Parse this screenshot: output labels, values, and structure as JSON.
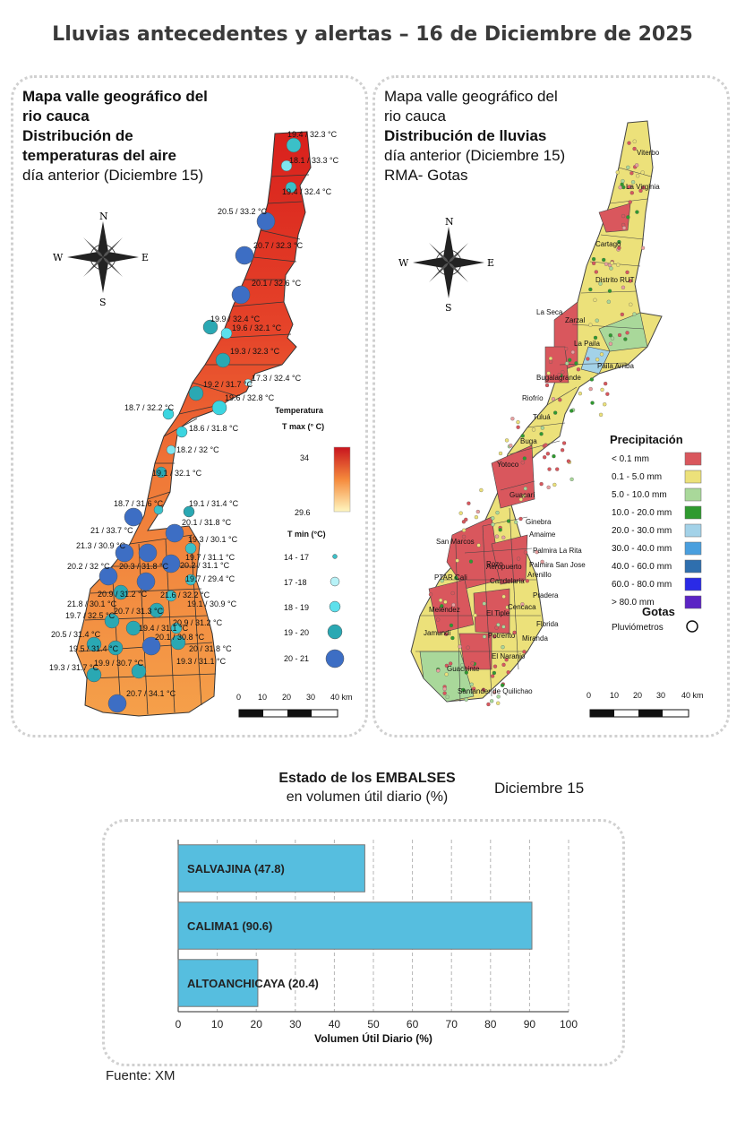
{
  "title": "Lluvias antecedentes y alertas – 16 de Diciembre de 2025",
  "left_map": {
    "line1": "Mapa valle geográfico del",
    "line2": "rio cauca",
    "line3": "Distribución de",
    "line4": "temperaturas del aire",
    "line5": "día anterior (Diciembre 15)",
    "compass": {
      "n": "N",
      "s": "S",
      "e": "E",
      "w": "W"
    },
    "tmax_title_1": "Temperatura",
    "tmax_title_2": "T max (° C)",
    "tmax_high": "34",
    "tmax_low": "29.6",
    "tmin_title": "T min (°C)",
    "tmin_classes": [
      "14 - 17",
      "17 -18",
      "18 - 19",
      "19 - 20",
      "20 - 21"
    ],
    "scale_labels": [
      "0",
      "10",
      "20",
      "30",
      "40 km"
    ],
    "station_labels": [
      "19.4 / 32.3 °C",
      "18.1 / 33.3 °C",
      "19.4 / 32.4 °C",
      "20.5 / 33.2 °C",
      "20.7 / 32.3 °C",
      "20.1 / 32.6 °C",
      "19.9 / 32.4 °C",
      "19.6 / 32.1 °C",
      "19.3 / 32.3 °C",
      "17.3 / 32.4 °C",
      "19.2 / 31.7 °C",
      "19.6 / 32.8 °C",
      "18.7 / 32.2 °C",
      "18.6 / 31.8 °C",
      "18.2 / 32 °C",
      "19.1 / 32.1 °C",
      "18.7 / 31.6 °C",
      "19.1 / 31.4 °C",
      "20.1 / 31.8 °C",
      "21 / 33.7 °C",
      "19.3 / 30.1 °C",
      "21.3 / 30.9 °C",
      "19.7 / 31.1 °C",
      "20.2 / 32 °C",
      "20.3 / 31.8 °C",
      "20.2 / 31.1 °C",
      "19.7 / 29.4 °C",
      "20.9 / 31.2 °C",
      "21.6 / 32.2 °C",
      "21.8 / 30.1 °C",
      "19.7 / 32.5 °C",
      "20.7 / 31.3 °C",
      "19.1 / 30.9 °C",
      "20.9 / 31.2 °C",
      "20.5 / 31.4 °C",
      "19.4 / 31.1 °C",
      "20.1 / 30.8 °C",
      "19.5 / 31.4 °C",
      "19.9 / 30.7 °C",
      "20 / 31.8 °C",
      "19.3 / 31.7 °C",
      "19.3 / 31.1 °C",
      "20.7 / 34.1 °C"
    ]
  },
  "right_map": {
    "line1": "Mapa valle geográfico del",
    "line2": "rio cauca",
    "line3": "Distribución de lluvias",
    "line4": "día anterior (Diciembre 15)",
    "line5": "RMA- Gotas",
    "compass": {
      "n": "N",
      "s": "S",
      "e": "E",
      "w": "W"
    },
    "places": [
      "Viterbo",
      "La Virginia",
      "Cartago",
      "Distrito RUT",
      "La Seca",
      "Zarzal",
      "La Paila",
      "Paila Arriba",
      "Bugalagrande",
      "Riofrío",
      "Tuluá",
      "Buga",
      "Yotoco",
      "Guacarí",
      "Ginebra",
      "Amaime",
      "San Marcos",
      "Rozo",
      "Palmira La Rita",
      "Aeropuerto",
      "Palmira San Jose",
      "Arenillo",
      "PTAR Cali",
      "Candelaria",
      "Meléndez",
      "Pradera",
      "Cencaca",
      "El Tiple",
      "Florida",
      "Jamundí",
      "Potrerito",
      "Miranda",
      "Guachinte",
      "El Naranjo",
      "Santander de Quilichao"
    ],
    "precip_title": "Precipitación",
    "precip_classes": [
      {
        "label": "< 0.1 mm",
        "color": "#d9575d"
      },
      {
        "label": "0.1 - 5.0 mm",
        "color": "#ece17a"
      },
      {
        "label": "5.0 - 10.0 mm",
        "color": "#a9d89a"
      },
      {
        "label": "10.0 - 20.0 mm",
        "color": "#2f9a2f"
      },
      {
        "label": "20.0 - 30.0 mm",
        "color": "#a3d2e8"
      },
      {
        "label": "30.0 - 40.0 mm",
        "color": "#4a9fde"
      },
      {
        "label": "40.0 - 60.0 mm",
        "color": "#2f6fae"
      },
      {
        "label": "60.0 - 80.0 mm",
        "color": "#2a2ae6"
      },
      {
        "label": "> 80.0 mm",
        "color": "#5b24c4"
      }
    ],
    "gotas_title": "Gotas",
    "gotas_item": "Pluviómetros",
    "scale_labels": [
      "0",
      "10",
      "20",
      "30",
      "40 km"
    ]
  },
  "reservoirs": {
    "title_1": "Estado de los EMBALSES",
    "title_2": "en volumen útil diario (%)",
    "date": "Diciembre 15",
    "xlabel": "Volumen Útil Diario (%)",
    "fuente": "Fuente: XM"
  },
  "chart_data": {
    "type": "bar",
    "orientation": "horizontal",
    "categories": [
      "SALVAJINA (47.8)",
      "CALIMA1 (90.6)",
      "ALTOANCHICAYA (20.4)"
    ],
    "values": [
      47.8,
      90.6,
      20.4
    ],
    "xlabel": "Volumen Útil Diario (%)",
    "xlim": [
      0,
      100
    ],
    "xticks": [
      0,
      10,
      20,
      30,
      40,
      50,
      60,
      70,
      80,
      90,
      100
    ],
    "grid": "vertical dashed",
    "bar_color": "#56bedf"
  }
}
